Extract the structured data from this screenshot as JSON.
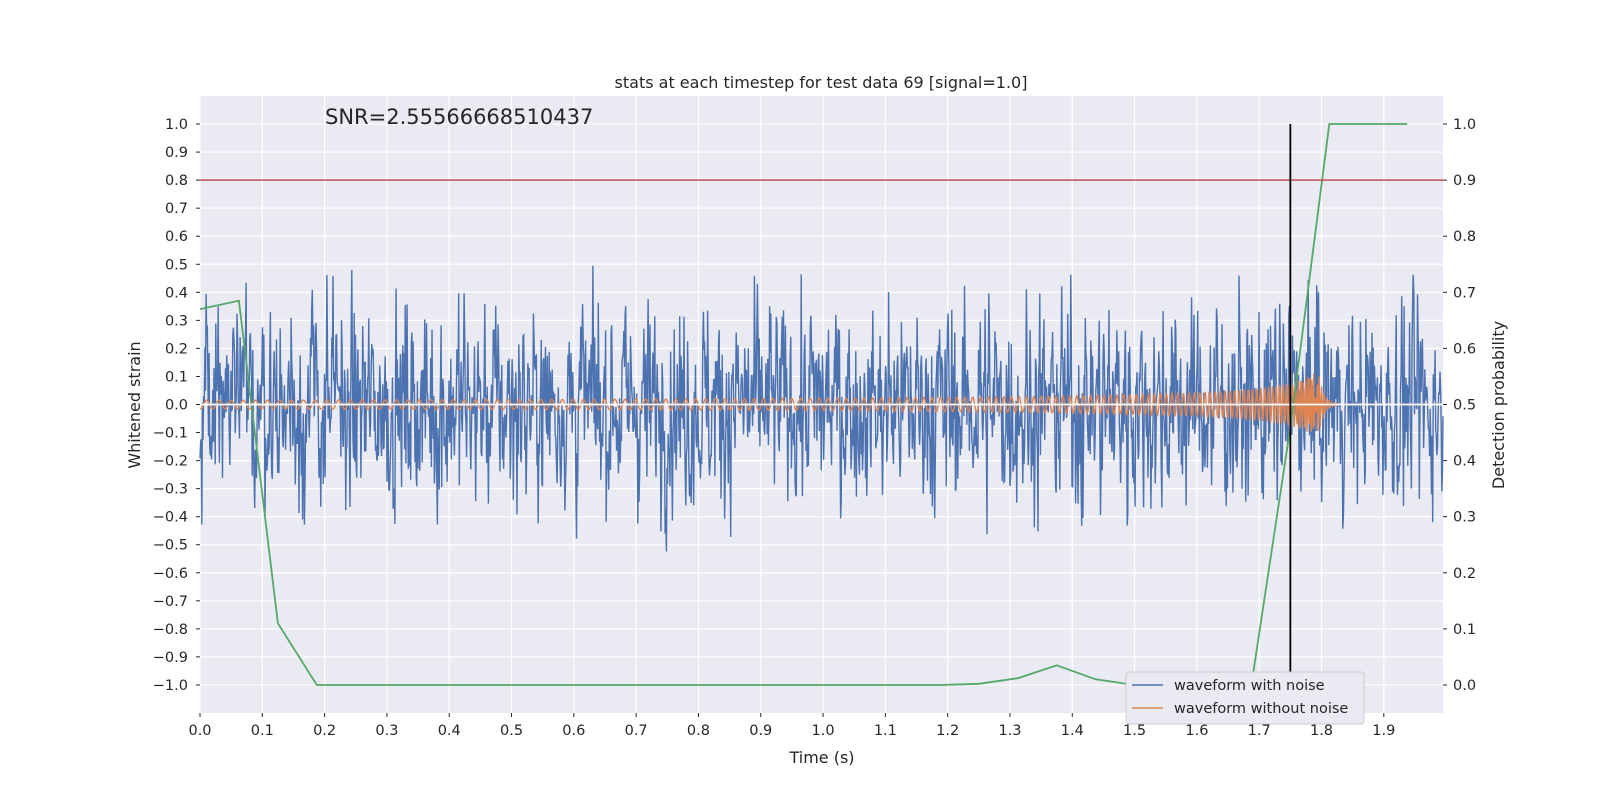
{
  "chart_data": {
    "type": "line",
    "title": "stats at each timestep for test data 69 [signal=1.0]",
    "xlabel": "Time (s)",
    "ylabel": "Whitened strain",
    "ylabel_right": "Detection probability",
    "annotation": "SNR=2.55566668510437",
    "xlim": [
      0.0,
      1.995
    ],
    "ylim": [
      -1.1,
      1.1
    ],
    "ylim_right": [
      -0.05,
      1.05
    ],
    "xticks": [
      "0.0",
      "0.1",
      "0.2",
      "0.3",
      "0.4",
      "0.5",
      "0.6",
      "0.7",
      "0.8",
      "0.9",
      "1.0",
      "1.1",
      "1.2",
      "1.3",
      "1.4",
      "1.5",
      "1.6",
      "1.7",
      "1.8",
      "1.9"
    ],
    "yticks": [
      "1.0",
      "0.9",
      "0.8",
      "0.7",
      "0.6",
      "0.5",
      "0.4",
      "0.3",
      "0.2",
      "0.1",
      "0.0",
      "−0.1",
      "−0.2",
      "−0.3",
      "−0.4",
      "−0.5",
      "−0.6",
      "−0.7",
      "−0.8",
      "−0.9",
      "−1.0"
    ],
    "yticks_right": [
      "1.0",
      "0.9",
      "0.8",
      "0.7",
      "0.6",
      "0.5",
      "0.4",
      "0.3",
      "0.2",
      "0.1",
      "0.0"
    ],
    "threshold_line": 0.8,
    "zero_line": 0.0,
    "marker_line_x": 1.75,
    "series": [
      {
        "name": "waveform with noise",
        "color": "#4c72b0"
      },
      {
        "name": "waveform without noise",
        "color": "#dd8452"
      },
      {
        "name": "Detection probability",
        "color": "#55a868",
        "axis": "right",
        "x": [
          0.0,
          0.0625,
          0.125,
          0.1875,
          0.25,
          0.3125,
          0.375,
          0.4375,
          0.5,
          0.5625,
          0.625,
          0.6875,
          0.75,
          0.8125,
          0.875,
          0.9375,
          1.0,
          1.0625,
          1.125,
          1.1875,
          1.25,
          1.3125,
          1.375,
          1.4375,
          1.5,
          1.5625,
          1.625,
          1.6875,
          1.75,
          1.8125,
          1.875,
          1.9375
        ],
        "values": [
          0.67,
          0.685,
          0.11,
          0.0,
          0.0,
          0.0,
          0.0,
          0.0,
          0.0,
          0.0,
          0.0,
          0.0,
          0.0,
          0.0,
          0.0,
          0.0,
          0.0,
          0.0,
          0.0,
          0.0,
          0.002,
          0.012,
          0.035,
          0.01,
          0.0,
          0.0,
          0.0,
          0.0,
          0.46,
          1.0,
          1.0,
          1.0
        ]
      }
    ],
    "threshold_color": "#c44e52",
    "marker_color": "#000000",
    "legend_position": "lower-right"
  }
}
